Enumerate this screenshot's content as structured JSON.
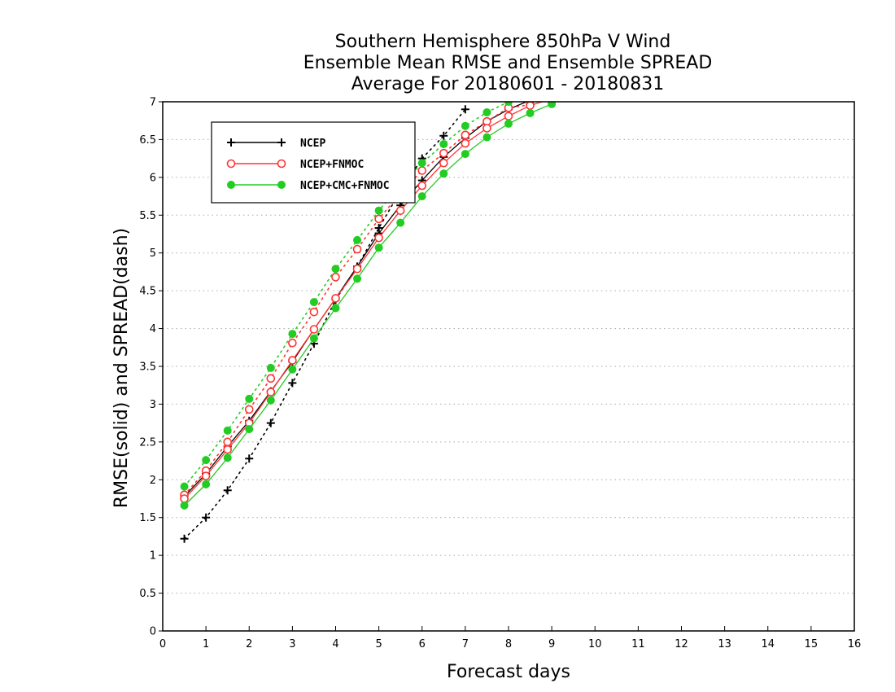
{
  "chart_data": {
    "type": "line",
    "title_lines": [
      "Southern Hemisphere 850hPa V Wind",
      "Ensemble Mean RMSE and Ensemble SPREAD",
      "Average For 20180601 - 20180831"
    ],
    "xlabel": "Forecast days",
    "ylabel": "RMSE(solid) and SPREAD(dash)",
    "xlim": [
      0,
      16
    ],
    "ylim": [
      0,
      7
    ],
    "x_ticks": [
      0,
      1,
      2,
      3,
      4,
      5,
      6,
      7,
      8,
      9,
      10,
      11,
      12,
      13,
      14,
      15,
      16
    ],
    "y_ticks": [
      0,
      0.5,
      1,
      1.5,
      2,
      2.5,
      3,
      3.5,
      4,
      4.5,
      5,
      5.5,
      6,
      6.5,
      7
    ],
    "grid": "horizontal dotted",
    "legend_position": "top-left",
    "series": [
      {
        "name": "NCEP",
        "marker": "plus",
        "color": "#000000",
        "rmse": {
          "x": [
            0.5,
            1,
            1.5,
            2,
            2.5,
            3,
            3.5,
            4,
            4.5,
            5,
            5.5,
            6,
            6.5,
            7,
            7.5,
            8,
            8.5,
            9
          ],
          "y": [
            1.78,
            2.08,
            2.44,
            2.78,
            3.17,
            3.56,
            3.99,
            4.4,
            4.82,
            5.26,
            5.63,
            5.96,
            6.27,
            6.52,
            6.74,
            6.9,
            7.02,
            7.1
          ]
        },
        "spread": {
          "x": [
            0.5,
            1,
            1.5,
            2,
            2.5,
            3,
            3.5,
            4,
            4.5,
            5,
            5.5,
            6,
            6.5,
            7
          ],
          "y": [
            1.22,
            1.5,
            1.86,
            2.28,
            2.75,
            3.28,
            3.8,
            4.38,
            4.82,
            5.33,
            5.82,
            6.25,
            6.55,
            6.9
          ]
        }
      },
      {
        "name": "NCEP+FNMOC",
        "marker": "open-circle",
        "color": "#ff3333",
        "rmse": {
          "x": [
            0.5,
            1,
            1.5,
            2,
            2.5,
            3,
            3.5,
            4,
            4.5,
            5,
            5.5,
            6,
            6.5,
            7,
            7.5,
            8,
            8.5,
            9
          ],
          "y": [
            1.75,
            2.05,
            2.4,
            2.75,
            3.16,
            3.58,
            3.99,
            4.4,
            4.79,
            5.2,
            5.56,
            5.89,
            6.19,
            6.45,
            6.65,
            6.81,
            6.95,
            7.04
          ]
        },
        "spread": {
          "x": [
            0.5,
            1,
            1.5,
            2,
            2.5,
            3,
            3.5,
            4,
            4.5,
            5,
            5.5,
            6,
            6.5,
            7,
            7.5,
            8,
            8.5
          ],
          "y": [
            1.8,
            2.12,
            2.5,
            2.93,
            3.34,
            3.81,
            4.22,
            4.68,
            5.05,
            5.45,
            5.79,
            6.09,
            6.32,
            6.56,
            6.74,
            6.92,
            6.96
          ]
        }
      },
      {
        "name": "NCEP+CMC+FNMOC",
        "marker": "filled-circle",
        "color": "#22cc22",
        "rmse": {
          "x": [
            0.5,
            1,
            1.5,
            2,
            2.5,
            3,
            3.5,
            4,
            4.5,
            5,
            5.5,
            6,
            6.5,
            7,
            7.5,
            8,
            8.5,
            9
          ],
          "y": [
            1.66,
            1.94,
            2.29,
            2.67,
            3.05,
            3.46,
            3.87,
            4.27,
            4.66,
            5.07,
            5.4,
            5.75,
            6.05,
            6.31,
            6.53,
            6.71,
            6.85,
            6.97
          ]
        },
        "spread": {
          "x": [
            0.5,
            1,
            1.5,
            2,
            2.5,
            3,
            3.5,
            4,
            4.5,
            5,
            5.5,
            6,
            6.5,
            7,
            7.5,
            8
          ],
          "y": [
            1.91,
            2.26,
            2.65,
            3.07,
            3.48,
            3.93,
            4.35,
            4.79,
            5.17,
            5.56,
            5.9,
            6.19,
            6.44,
            6.68,
            6.86,
            7.0
          ]
        }
      }
    ]
  }
}
